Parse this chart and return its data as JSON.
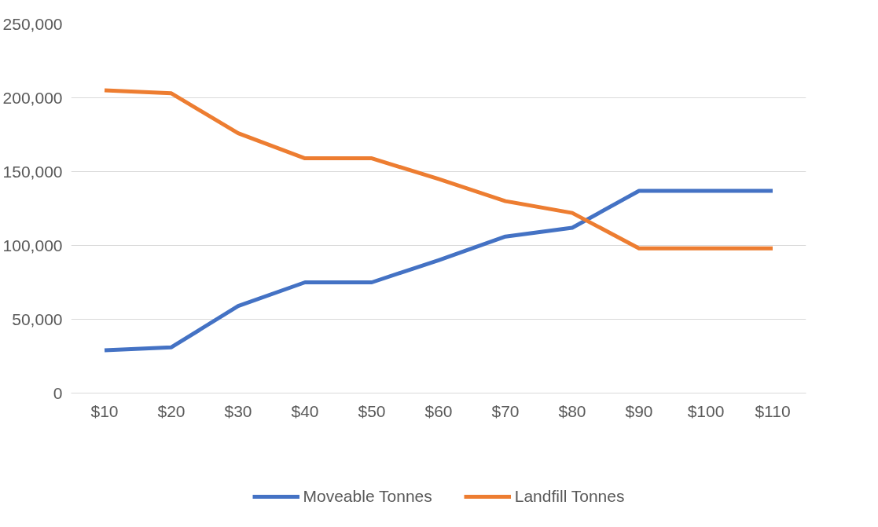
{
  "chart_data": {
    "type": "line",
    "categories": [
      "$10",
      "$20",
      "$30",
      "$40",
      "$50",
      "$60",
      "$70",
      "$80",
      "$90",
      "$100",
      "$110"
    ],
    "series": [
      {
        "name": "Moveable Tonnes",
        "color": "#4472c4",
        "values": [
          29000,
          31000,
          59000,
          75000,
          75000,
          90000,
          106000,
          112000,
          137000,
          137000,
          137000
        ]
      },
      {
        "name": "Landfill Tonnes",
        "color": "#ed7d31",
        "values": [
          205000,
          203000,
          176000,
          159000,
          159000,
          145000,
          130000,
          122000,
          98000,
          98000,
          98000
        ]
      }
    ],
    "ylim": [
      0,
      250000
    ],
    "yticks": [
      {
        "value": 0,
        "label": "0"
      },
      {
        "value": 50000,
        "label": "50,000"
      },
      {
        "value": 100000,
        "label": "100,000"
      },
      {
        "value": 150000,
        "label": "150,000"
      },
      {
        "value": 200000,
        "label": "200,000"
      },
      {
        "value": 250000,
        "label": "250,000"
      }
    ],
    "grid": "y",
    "legend": "bottom",
    "marker": "none",
    "line_style": "solid"
  }
}
